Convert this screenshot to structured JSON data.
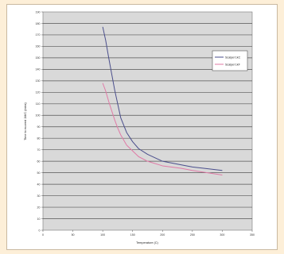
{
  "chart_data": {
    "type": "line",
    "xlabel": "Temperature (C)",
    "ylabel": "Time to exceed 1M/C (mins)",
    "xlim": [
      0,
      350
    ],
    "ylim": [
      0,
      190
    ],
    "x_ticks": [
      0,
      50,
      100,
      150,
      200,
      250,
      300,
      350
    ],
    "x_tick_labels": [
      "0",
      "50",
      "100",
      "150",
      "200",
      "250",
      "300",
      "350"
    ],
    "y_ticks": [
      0,
      10,
      20,
      30,
      40,
      50,
      60,
      70,
      80,
      90,
      100,
      110,
      120,
      130,
      140,
      150,
      160,
      170,
      180,
      190
    ],
    "y_tick_labels": [
      "0",
      "10",
      "20",
      "30",
      "40",
      "50",
      "60",
      "70",
      "80",
      "90",
      "100",
      "110",
      "120",
      "130",
      "140",
      "150",
      "160",
      "170",
      "180",
      "190"
    ],
    "grid": "horizontal",
    "legend_position": "right",
    "series": [
      {
        "name": "Scalpel 1kC",
        "color": "#4a4e8c",
        "x": [
          100,
          105,
          110,
          115,
          120,
          125,
          130,
          140,
          150,
          160,
          175,
          200,
          230,
          250,
          300
        ],
        "y": [
          177,
          165,
          150,
          136,
          122,
          110,
          98,
          85,
          77,
          71,
          66,
          60,
          57,
          55,
          52
        ]
      },
      {
        "name": "Scalpel 1kF",
        "color": "#e07aa6",
        "x": [
          100,
          105,
          110,
          115,
          120,
          125,
          130,
          140,
          150,
          160,
          175,
          200,
          230,
          250,
          300
        ],
        "y": [
          128,
          121,
          112,
          104,
          96,
          89,
          83,
          74,
          69,
          64,
          60,
          56,
          54,
          52,
          48
        ]
      }
    ]
  }
}
